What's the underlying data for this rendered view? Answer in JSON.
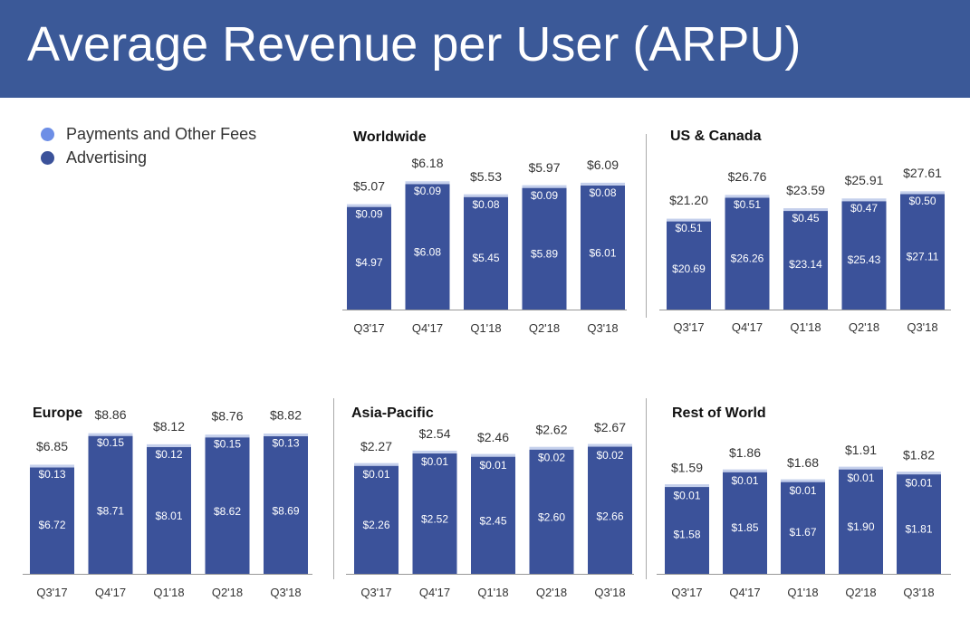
{
  "header": {
    "title": "Average Revenue per User (ARPU)"
  },
  "colors": {
    "header_bg": "#3b5998",
    "advertising": "#3b529a",
    "payments": "#6d8ee6",
    "cap": "#c5d0ec"
  },
  "legend": [
    {
      "label": "Payments and Other Fees",
      "color": "#6d8ee6"
    },
    {
      "label": "Advertising",
      "color": "#3b529a"
    }
  ],
  "chart_data": [
    {
      "type": "bar",
      "title": "Worldwide",
      "categories": [
        "Q3'17",
        "Q4'17",
        "Q1'18",
        "Q2'18",
        "Q3'18"
      ],
      "series": [
        {
          "name": "Advertising",
          "values": [
            4.97,
            6.08,
            5.45,
            5.89,
            6.01
          ],
          "labels": [
            "$4.97",
            "$6.08",
            "$5.45",
            "$5.89",
            "$6.01"
          ]
        },
        {
          "name": "Payments and Other Fees",
          "values": [
            0.09,
            0.09,
            0.08,
            0.09,
            0.08
          ],
          "labels": [
            "$0.09",
            "$0.09",
            "$0.08",
            "$0.09",
            "$0.08"
          ]
        }
      ],
      "totals": [
        "$5.07",
        "$6.18",
        "$5.53",
        "$5.97",
        "$6.09"
      ],
      "total_values": [
        5.07,
        6.18,
        5.53,
        5.97,
        6.09
      ],
      "ylim": [
        0,
        6.18
      ]
    },
    {
      "type": "bar",
      "title": "US & Canada",
      "categories": [
        "Q3'17",
        "Q4'17",
        "Q1'18",
        "Q2'18",
        "Q3'18"
      ],
      "series": [
        {
          "name": "Advertising",
          "values": [
            20.69,
            26.26,
            23.14,
            25.43,
            27.11
          ],
          "labels": [
            "$20.69",
            "$26.26",
            "$23.14",
            "$25.43",
            "$27.11"
          ]
        },
        {
          "name": "Payments and Other Fees",
          "values": [
            0.51,
            0.51,
            0.45,
            0.47,
            0.5
          ],
          "labels": [
            "$0.51",
            "$0.51",
            "$0.45",
            "$0.47",
            "$0.50"
          ]
        }
      ],
      "totals": [
        "$21.20",
        "$26.76",
        "$23.59",
        "$25.91",
        "$27.61"
      ],
      "total_values": [
        21.2,
        26.76,
        23.59,
        25.91,
        27.61
      ],
      "ylim": [
        0,
        27.61
      ]
    },
    {
      "type": "bar",
      "title": "Europe",
      "categories": [
        "Q3'17",
        "Q4'17",
        "Q1'18",
        "Q2'18",
        "Q3'18"
      ],
      "series": [
        {
          "name": "Advertising",
          "values": [
            6.72,
            8.71,
            8.01,
            8.62,
            8.69
          ],
          "labels": [
            "$6.72",
            "$8.71",
            "$8.01",
            "$8.62",
            "$8.69"
          ]
        },
        {
          "name": "Payments and Other Fees",
          "values": [
            0.13,
            0.15,
            0.12,
            0.15,
            0.13
          ],
          "labels": [
            "$0.13",
            "$0.15",
            "$0.12",
            "$0.15",
            "$0.13"
          ]
        }
      ],
      "totals": [
        "$6.85",
        "$8.86",
        "$8.12",
        "$8.76",
        "$8.82"
      ],
      "total_values": [
        6.85,
        8.86,
        8.12,
        8.76,
        8.82
      ],
      "ylim": [
        0,
        8.86
      ]
    },
    {
      "type": "bar",
      "title": "Asia-Pacific",
      "categories": [
        "Q3'17",
        "Q4'17",
        "Q1'18",
        "Q2'18",
        "Q3'18"
      ],
      "series": [
        {
          "name": "Advertising",
          "values": [
            2.26,
            2.52,
            2.45,
            2.6,
            2.66
          ],
          "labels": [
            "$2.26",
            "$2.52",
            "$2.45",
            "$2.60",
            "$2.66"
          ]
        },
        {
          "name": "Payments and Other Fees",
          "values": [
            0.01,
            0.01,
            0.01,
            0.02,
            0.02
          ],
          "labels": [
            "$0.01",
            "$0.01",
            "$0.01",
            "$0.02",
            "$0.02"
          ]
        }
      ],
      "totals": [
        "$2.27",
        "$2.54",
        "$2.46",
        "$2.62",
        "$2.67"
      ],
      "total_values": [
        2.27,
        2.54,
        2.46,
        2.62,
        2.67
      ],
      "ylim": [
        0,
        2.67
      ]
    },
    {
      "type": "bar",
      "title": "Rest of World",
      "categories": [
        "Q3'17",
        "Q4'17",
        "Q1'18",
        "Q2'18",
        "Q3'18"
      ],
      "series": [
        {
          "name": "Advertising",
          "values": [
            1.58,
            1.85,
            1.67,
            1.9,
            1.81
          ],
          "labels": [
            "$1.58",
            "$1.85",
            "$1.67",
            "$1.90",
            "$1.81"
          ]
        },
        {
          "name": "Payments and Other Fees",
          "values": [
            0.01,
            0.01,
            0.01,
            0.01,
            0.01
          ],
          "labels": [
            "$0.01",
            "$0.01",
            "$0.01",
            "$0.01",
            "$0.01"
          ]
        }
      ],
      "totals": [
        "$1.59",
        "$1.86",
        "$1.68",
        "$1.91",
        "$1.82"
      ],
      "total_values": [
        1.59,
        1.86,
        1.68,
        1.91,
        1.82
      ],
      "ylim": [
        0,
        1.91
      ]
    }
  ]
}
